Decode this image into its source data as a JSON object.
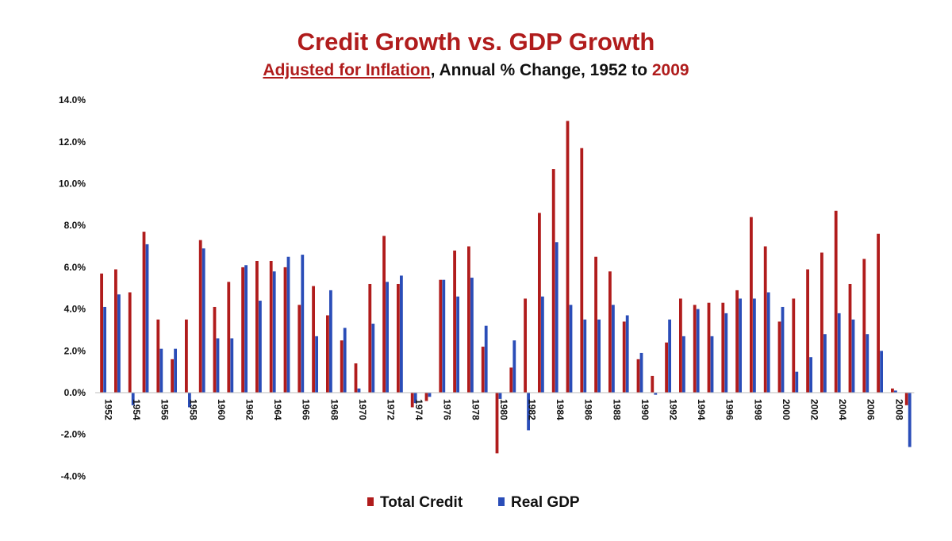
{
  "header": {
    "title": "Credit Growth vs. GDP Growth",
    "subtitle_link": "Adjusted for Inflation",
    "subtitle_mid": ", Annual % Change, 1952 to ",
    "subtitle_year": "2009"
  },
  "chart_data": {
    "type": "bar",
    "title": "Credit Growth vs. GDP Growth",
    "subtitle": "Adjusted for Inflation, Annual % Change, 1952 to 2009",
    "xlabel": "",
    "ylabel": "",
    "ylim": [
      -4,
      14
    ],
    "yticks": [
      "14.0%",
      "12.0%",
      "10.0%",
      "8.0%",
      "6.0%",
      "4.0%",
      "2.0%",
      "0.0%",
      "-2.0%",
      "-4.0%"
    ],
    "ytick_values": [
      14,
      12,
      10,
      8,
      6,
      4,
      2,
      0,
      -2,
      -4
    ],
    "grid": false,
    "legend_position": "bottom-center",
    "colors": {
      "Total Credit": "#b01c1c",
      "Real GDP": "#2a4db8"
    },
    "categories": [
      "1952",
      "1953",
      "1954",
      "1955",
      "1956",
      "1957",
      "1958",
      "1959",
      "1960",
      "1961",
      "1962",
      "1963",
      "1964",
      "1965",
      "1966",
      "1967",
      "1968",
      "1969",
      "1970",
      "1971",
      "1972",
      "1973",
      "1974",
      "1975",
      "1976",
      "1977",
      "1978",
      "1979",
      "1980",
      "1981",
      "1982",
      "1983",
      "1984",
      "1985",
      "1986",
      "1987",
      "1988",
      "1989",
      "1990",
      "1991",
      "1992",
      "1993",
      "1994",
      "1995",
      "1996",
      "1997",
      "1998",
      "1999",
      "2000",
      "2001",
      "2002",
      "2003",
      "2004",
      "2005",
      "2006",
      "2007",
      "2008",
      "2009"
    ],
    "tick_labels": [
      "1952",
      "1954",
      "1956",
      "1958",
      "1960",
      "1962",
      "1964",
      "1966",
      "1968",
      "1970",
      "1972",
      "1974",
      "1976",
      "1978",
      "1980",
      "1982",
      "1984",
      "1986",
      "1988",
      "1990",
      "1992",
      "1994",
      "1996",
      "1998",
      "2000",
      "2002",
      "2004",
      "2006",
      "2008"
    ],
    "series": [
      {
        "name": "Total Credit",
        "values": [
          5.7,
          5.9,
          4.8,
          7.7,
          3.5,
          1.6,
          3.5,
          7.3,
          4.1,
          5.3,
          6.0,
          6.3,
          6.3,
          6.0,
          4.2,
          5.1,
          3.7,
          2.5,
          1.4,
          5.2,
          7.5,
          5.2,
          -0.7,
          -0.4,
          5.4,
          6.8,
          7.0,
          2.2,
          -2.9,
          1.2,
          4.5,
          8.6,
          10.7,
          13.0,
          11.7,
          6.5,
          5.8,
          3.4,
          1.6,
          0.8,
          2.4,
          4.5,
          4.2,
          4.3,
          4.3,
          4.9,
          8.4,
          7.0,
          3.4,
          4.5,
          5.9,
          6.7,
          8.7,
          5.2,
          6.4,
          7.6,
          0.2,
          -0.6
        ]
      },
      {
        "name": "Real GDP",
        "values": [
          4.1,
          4.7,
          -0.6,
          7.1,
          2.1,
          2.1,
          -0.7,
          6.9,
          2.6,
          2.6,
          6.1,
          4.4,
          5.8,
          6.5,
          6.6,
          2.7,
          4.9,
          3.1,
          0.2,
          3.3,
          5.3,
          5.6,
          -0.5,
          -0.2,
          5.4,
          4.6,
          5.5,
          3.2,
          -0.3,
          2.5,
          -1.8,
          4.6,
          7.2,
          4.2,
          3.5,
          3.5,
          4.2,
          3.7,
          1.9,
          -0.1,
          3.5,
          2.7,
          4.0,
          2.7,
          3.8,
          4.5,
          4.5,
          4.8,
          4.1,
          1.0,
          1.7,
          2.8,
          3.8,
          3.5,
          2.8,
          2.0,
          0.1,
          -2.6
        ]
      }
    ]
  }
}
